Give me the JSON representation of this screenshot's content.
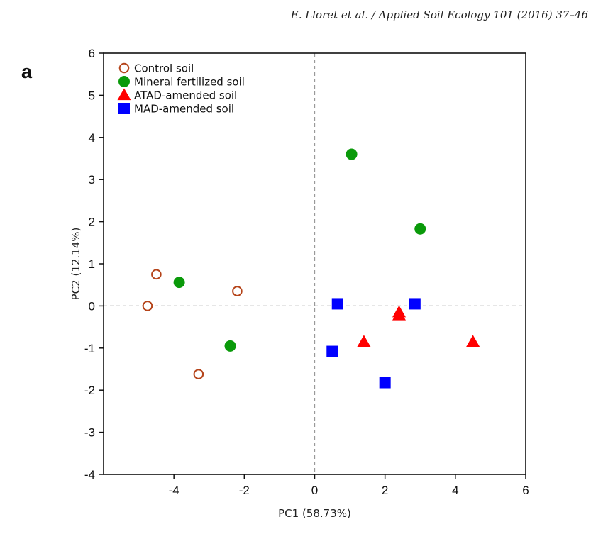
{
  "header": {
    "citation": "E. Lloret et al. / Applied Soil Ecology 101 (2016) 37–46"
  },
  "panel_label": "a",
  "chart_data": {
    "type": "scatter",
    "title": "",
    "xlabel": "PC1 (58.73%)",
    "ylabel": "PC2 (12.14%)",
    "xlim": [
      -6,
      6
    ],
    "ylim": [
      -4,
      6
    ],
    "xticks": [
      -4,
      -2,
      0,
      2,
      4,
      6
    ],
    "yticks": [
      -4,
      -3,
      -2,
      -1,
      0,
      1,
      2,
      3,
      4,
      5,
      6
    ],
    "reference_lines": {
      "x": 0,
      "y": 0,
      "style": "dashed"
    },
    "legend_position": "top-left",
    "series": [
      {
        "name": "Control soil",
        "marker": "circle-open",
        "color": "#b5441a",
        "points": [
          [
            -4.5,
            0.75
          ],
          [
            -4.75,
            0.0
          ],
          [
            -2.2,
            0.35
          ],
          [
            -3.3,
            -1.62
          ]
        ]
      },
      {
        "name": "Mineral fertilized soil",
        "marker": "circle",
        "color": "#0a9a0a",
        "points": [
          [
            -3.85,
            0.56
          ],
          [
            -2.4,
            -0.95
          ],
          [
            1.05,
            3.6
          ],
          [
            3.0,
            1.83
          ]
        ]
      },
      {
        "name": "ATAD-amended soil",
        "marker": "triangle",
        "color": "#ff0000",
        "points": [
          [
            2.4,
            -0.15
          ],
          [
            2.4,
            -0.22
          ],
          [
            1.4,
            -0.85
          ],
          [
            4.5,
            -0.85
          ]
        ]
      },
      {
        "name": "MAD-amended soil",
        "marker": "square",
        "color": "#0000ff",
        "points": [
          [
            0.65,
            0.05
          ],
          [
            0.5,
            -1.08
          ],
          [
            2.0,
            -1.82
          ],
          [
            2.85,
            0.05
          ]
        ]
      }
    ]
  }
}
